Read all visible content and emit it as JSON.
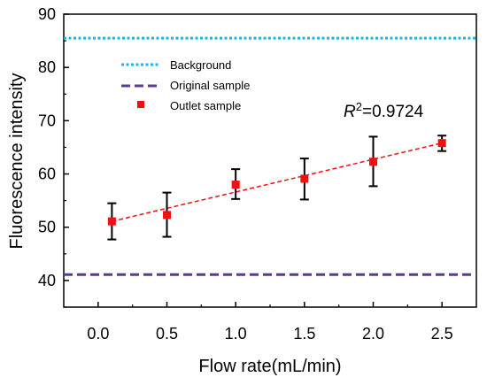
{
  "chart_data": {
    "type": "scatter",
    "xlabel": "Flow rate(mL/min)",
    "ylabel": "Fluorescence intensity",
    "xlim": [
      -0.25,
      2.75
    ],
    "ylim": [
      35,
      90
    ],
    "xticks": [
      "0.0",
      "0.5",
      "1.0",
      "1.5",
      "2.0",
      "2.5"
    ],
    "xtick_values": [
      0.0,
      0.5,
      1.0,
      1.5,
      2.0,
      2.5
    ],
    "yticks": [
      "40",
      "50",
      "60",
      "70",
      "80",
      "90"
    ],
    "ytick_values": [
      40,
      50,
      60,
      70,
      80,
      90
    ],
    "grid": false,
    "legend_position": "top-left",
    "annotation": {
      "prefix": "R",
      "sup": "2",
      "value": "=0.9724"
    },
    "reference_lines": [
      {
        "name": "Background",
        "y": 85.5,
        "color": "#1eb4e6",
        "style": "dotted"
      },
      {
        "name": "Original sample",
        "y": 41.1,
        "color": "#5a3c8c",
        "style": "dashed"
      }
    ],
    "series": [
      {
        "name": "Outlet sample",
        "color": "#ee1111",
        "marker": "square",
        "x": [
          0.1,
          0.5,
          1.0,
          1.5,
          2.0,
          2.5
        ],
        "y": [
          51.1,
          52.3,
          58.0,
          59.1,
          62.3,
          65.8
        ],
        "error_low": [
          47.7,
          48.2,
          55.3,
          55.2,
          57.7,
          64.3
        ],
        "error_high": [
          54.5,
          56.5,
          60.9,
          62.9,
          67.0,
          67.2
        ]
      }
    ],
    "fit_line": {
      "color": "#ee1111",
      "style": "dashed",
      "x": [
        0.1,
        2.5
      ],
      "y": [
        51.1,
        65.8
      ]
    }
  }
}
